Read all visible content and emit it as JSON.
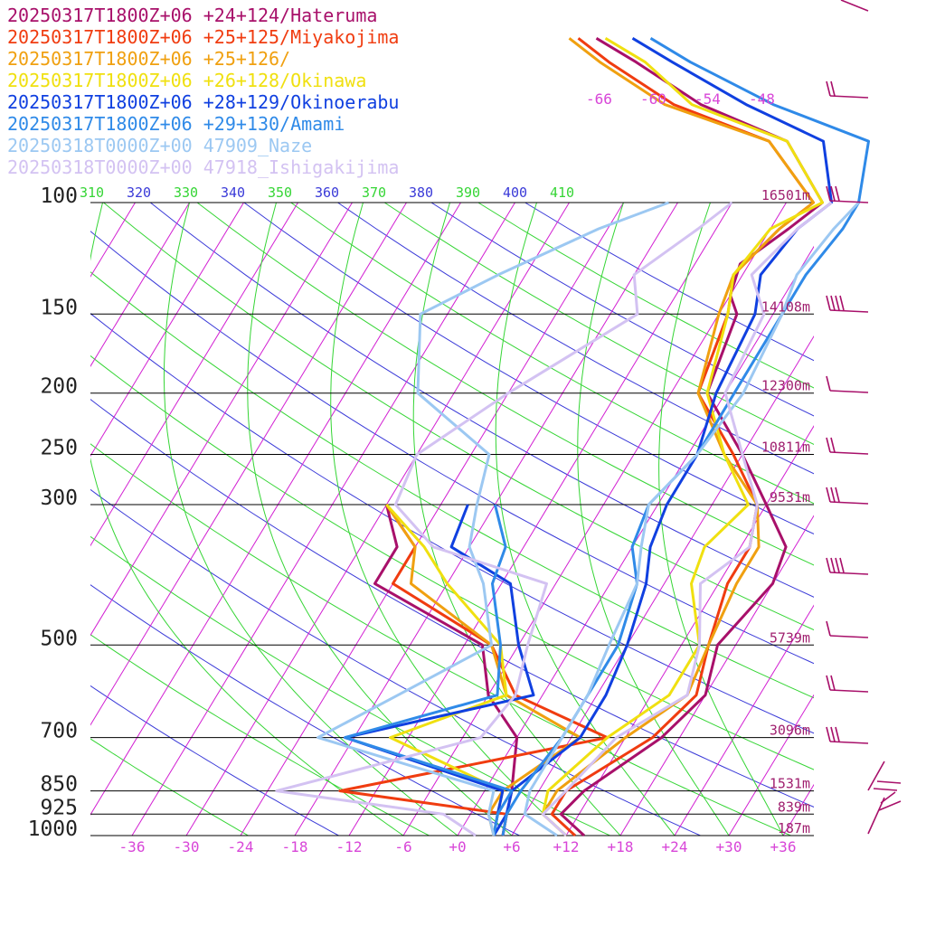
{
  "chart_data": {
    "type": "line",
    "title": "",
    "xlabel": "",
    "ylabel": "",
    "xlim": [
      -40,
      40
    ],
    "ylim": [
      1000,
      100
    ],
    "y_scale": "log",
    "pressure_levels": [
      100,
      150,
      200,
      250,
      300,
      500,
      700,
      850,
      925,
      1000
    ],
    "pressure_labels": [
      "100",
      "150",
      "200",
      "250",
      "300",
      "500",
      "700",
      "850",
      "925",
      "1000"
    ],
    "temperature_ticks": [
      "-36",
      "-30",
      "-24",
      "-18",
      "-12",
      "-6",
      "+0",
      "+6",
      "+12",
      "+18",
      "+24",
      "+30",
      "+36"
    ],
    "mixing_ratio_labels": [
      "-66",
      "-60",
      "-54",
      "-48"
    ],
    "theta_labels": [
      {
        "text": "310",
        "color": "#35d535"
      },
      {
        "text": "320",
        "color": "#3a3ad8"
      },
      {
        "text": "330",
        "color": "#35d535"
      },
      {
        "text": "340",
        "color": "#3a3ad8"
      },
      {
        "text": "350",
        "color": "#35d535"
      },
      {
        "text": "360",
        "color": "#3a3ad8"
      },
      {
        "text": "370",
        "color": "#35d535"
      },
      {
        "text": "380",
        "color": "#3a3ad8"
      },
      {
        "text": "390",
        "color": "#35d535"
      },
      {
        "text": "400",
        "color": "#3a3ad8"
      },
      {
        "text": "410",
        "color": "#35d535"
      }
    ],
    "height_labels": [
      {
        "p": 100,
        "text": "16501m"
      },
      {
        "p": 150,
        "text": "14108m"
      },
      {
        "p": 200,
        "text": "12300m"
      },
      {
        "p": 250,
        "text": "10811m"
      },
      {
        "p": 300,
        "text": "9531m"
      },
      {
        "p": 500,
        "text": "5739m"
      },
      {
        "p": 700,
        "text": "3096m"
      },
      {
        "p": 850,
        "text": "1531m"
      },
      {
        "p": 925,
        "text": "839m"
      },
      {
        "p": 1000,
        "text": "187m"
      }
    ],
    "series": [
      {
        "name": "20250317T1800Z+06 +24+124/Hateruma",
        "color": "#a8106a",
        "temperature": [
          [
            1000,
            14
          ],
          [
            925,
            10
          ],
          [
            850,
            11
          ],
          [
            700,
            16
          ],
          [
            600,
            18
          ],
          [
            500,
            16
          ],
          [
            400,
            18
          ],
          [
            350,
            17
          ],
          [
            300,
            12
          ],
          [
            250,
            6
          ],
          [
            200,
            -2
          ],
          [
            150,
            -4
          ],
          [
            140,
            -6
          ],
          [
            125,
            -7
          ],
          [
            110,
            -4
          ],
          [
            100,
            -2
          ],
          [
            80,
            -10
          ],
          [
            70,
            -22
          ],
          [
            60,
            -32
          ],
          [
            55,
            -38
          ]
        ],
        "dewpoint": [
          [
            1000,
            5
          ],
          [
            925,
            4
          ],
          [
            850,
            3
          ],
          [
            700,
            0
          ],
          [
            600,
            -6
          ],
          [
            500,
            -10
          ],
          [
            400,
            -26
          ],
          [
            350,
            -26
          ],
          [
            300,
            -30
          ]
        ]
      },
      {
        "name": "20250317T1800Z+06 +25+125/Miyakojima",
        "color": "#f03c10",
        "temperature": [
          [
            1000,
            13
          ],
          [
            925,
            9
          ],
          [
            850,
            9
          ],
          [
            700,
            15
          ],
          [
            600,
            17
          ],
          [
            500,
            15
          ],
          [
            400,
            13
          ],
          [
            350,
            13
          ],
          [
            300,
            11
          ],
          [
            250,
            5
          ],
          [
            200,
            -3
          ],
          [
            150,
            -5
          ],
          [
            130,
            -7
          ],
          [
            110,
            -5
          ],
          [
            100,
            -3
          ],
          [
            80,
            -12
          ],
          [
            70,
            -25
          ],
          [
            60,
            -35
          ],
          [
            55,
            -40
          ]
        ],
        "dewpoint": [
          [
            1000,
            5
          ],
          [
            925,
            4
          ],
          [
            850,
            -16
          ],
          [
            700,
            10
          ],
          [
            600,
            -3
          ],
          [
            500,
            -9
          ],
          [
            400,
            -24
          ],
          [
            350,
            -24
          ],
          [
            300,
            -30
          ]
        ]
      },
      {
        "name": "20250317T1800Z+06 +25+126/",
        "color": "#f0a010",
        "temperature": [
          [
            1000,
            12
          ],
          [
            925,
            8
          ],
          [
            850,
            8
          ],
          [
            700,
            12
          ],
          [
            600,
            16
          ],
          [
            500,
            15
          ],
          [
            400,
            14
          ],
          [
            350,
            14
          ],
          [
            300,
            11
          ],
          [
            250,
            4
          ],
          [
            200,
            -3
          ],
          [
            150,
            -6
          ],
          [
            130,
            -7
          ],
          [
            110,
            -5
          ],
          [
            100,
            -3
          ],
          [
            80,
            -12
          ],
          [
            70,
            -26
          ],
          [
            60,
            -36
          ],
          [
            55,
            -41
          ]
        ],
        "dewpoint": [
          [
            1000,
            4
          ],
          [
            925,
            2
          ],
          [
            850,
            2
          ],
          [
            700,
            7
          ],
          [
            600,
            -4
          ],
          [
            500,
            -9
          ],
          [
            400,
            -22
          ],
          [
            350,
            -24
          ],
          [
            300,
            -30
          ]
        ]
      },
      {
        "name": "20250317T1800Z+06 +26+128/Okinawa",
        "color": "#f0e010",
        "temperature": [
          [
            1000,
            12
          ],
          [
            925,
            8
          ],
          [
            850,
            7
          ],
          [
            700,
            10
          ],
          [
            600,
            14
          ],
          [
            500,
            14
          ],
          [
            400,
            9
          ],
          [
            350,
            8
          ],
          [
            300,
            10
          ],
          [
            250,
            4
          ],
          [
            200,
            -2
          ],
          [
            150,
            -5
          ],
          [
            130,
            -7
          ],
          [
            110,
            -6
          ],
          [
            100,
            -2
          ],
          [
            80,
            -10
          ],
          [
            70,
            -23
          ],
          [
            60,
            -31
          ],
          [
            55,
            -37
          ]
        ],
        "dewpoint": [
          [
            1000,
            4
          ],
          [
            925,
            3
          ],
          [
            850,
            2
          ],
          [
            700,
            -14
          ],
          [
            600,
            -4
          ],
          [
            500,
            -8
          ],
          [
            400,
            -18
          ],
          [
            350,
            -23
          ],
          [
            300,
            -30
          ]
        ]
      },
      {
        "name": "20250317T1800Z+06 +28+129/Okinoerabu",
        "color": "#1040e0",
        "temperature": [
          [
            1000,
            4
          ],
          [
            925,
            4
          ],
          [
            850,
            3
          ],
          [
            700,
            7
          ],
          [
            600,
            7
          ],
          [
            500,
            6
          ],
          [
            400,
            4
          ],
          [
            350,
            2
          ],
          [
            300,
            1
          ],
          [
            250,
            1
          ],
          [
            200,
            -1
          ],
          [
            150,
            -2
          ],
          [
            130,
            -4
          ],
          [
            110,
            -3
          ],
          [
            100,
            -1
          ],
          [
            80,
            -6
          ],
          [
            70,
            -17
          ],
          [
            60,
            -28
          ],
          [
            55,
            -34
          ]
        ],
        "dewpoint": [
          [
            1000,
            4
          ],
          [
            925,
            3
          ],
          [
            850,
            2
          ],
          [
            700,
            -19
          ],
          [
            600,
            -1
          ],
          [
            500,
            -6
          ],
          [
            400,
            -11
          ],
          [
            350,
            -20
          ],
          [
            300,
            -21
          ]
        ]
      },
      {
        "name": "20250317T1800Z+06 +29+130/Amami",
        "color": "#2f8ae8",
        "temperature": [
          [
            1000,
            5
          ],
          [
            925,
            4
          ],
          [
            850,
            4
          ],
          [
            700,
            5
          ],
          [
            600,
            5
          ],
          [
            500,
            5
          ],
          [
            400,
            3
          ],
          [
            350,
            0
          ],
          [
            300,
            -1
          ],
          [
            250,
            1
          ],
          [
            200,
            1
          ],
          [
            150,
            1
          ],
          [
            130,
            1
          ],
          [
            110,
            2
          ],
          [
            100,
            2
          ],
          [
            80,
            -1
          ],
          [
            70,
            -14
          ],
          [
            60,
            -26
          ],
          [
            55,
            -32
          ]
        ],
        "dewpoint": [
          [
            1000,
            4
          ],
          [
            925,
            3
          ],
          [
            850,
            3
          ],
          [
            700,
            -19
          ],
          [
            600,
            -5
          ],
          [
            500,
            -8
          ],
          [
            400,
            -13
          ],
          [
            350,
            -14
          ],
          [
            300,
            -18
          ]
        ]
      },
      {
        "name": "20250318T0000Z+00 47909_Naze",
        "color": "#9cc8f2",
        "temperature": [
          [
            1000,
            11
          ],
          [
            925,
            6
          ],
          [
            850,
            5
          ],
          [
            700,
            5
          ],
          [
            600,
            5
          ],
          [
            500,
            4
          ],
          [
            400,
            3
          ],
          [
            350,
            1
          ],
          [
            300,
            -1
          ],
          [
            250,
            1
          ],
          [
            200,
            2
          ],
          [
            150,
            1
          ],
          [
            130,
            0
          ],
          [
            110,
            1
          ],
          [
            100,
            2
          ]
        ],
        "dewpoint": [
          [
            1000,
            4
          ],
          [
            925,
            2
          ],
          [
            850,
            1
          ],
          [
            700,
            -22
          ],
          [
            600,
            -16
          ],
          [
            500,
            -9
          ],
          [
            400,
            -14
          ],
          [
            350,
            -18
          ],
          [
            300,
            -20
          ],
          [
            250,
            -22
          ],
          [
            200,
            -34
          ],
          [
            150,
            -39
          ],
          [
            130,
            -33
          ],
          [
            110,
            -25
          ],
          [
            100,
            -19
          ]
        ]
      },
      {
        "name": "20250318T0000Z+00 47918_Ishigakijima",
        "color": "#d3c2f2",
        "temperature": [
          [
            1000,
            12
          ],
          [
            925,
            8
          ],
          [
            850,
            9
          ],
          [
            700,
            11
          ],
          [
            600,
            16
          ],
          [
            500,
            14
          ],
          [
            400,
            10
          ],
          [
            350,
            13
          ],
          [
            300,
            11
          ],
          [
            250,
            6
          ],
          [
            200,
            0
          ],
          [
            150,
            -1
          ],
          [
            130,
            -5
          ],
          [
            110,
            -3
          ],
          [
            100,
            -1
          ]
        ],
        "dewpoint": [
          [
            1000,
            2
          ],
          [
            925,
            -3
          ],
          [
            850,
            -23
          ],
          [
            700,
            -4
          ],
          [
            600,
            -3
          ],
          [
            500,
            -5
          ],
          [
            400,
            -7
          ],
          [
            350,
            -22
          ],
          [
            300,
            -29
          ],
          [
            250,
            -30
          ],
          [
            200,
            -24
          ],
          [
            150,
            -15
          ],
          [
            130,
            -18
          ],
          [
            110,
            -14
          ],
          [
            100,
            -12
          ]
        ]
      }
    ],
    "legend_position": "top-left",
    "wind_barbs_column": "right"
  }
}
